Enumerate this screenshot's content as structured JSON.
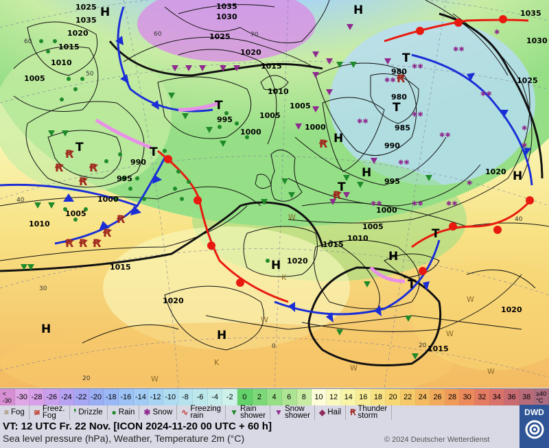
{
  "map": {
    "pressure_labels": [
      "1035",
      "1025",
      "1020",
      "1015",
      "1010",
      "1005",
      "995",
      "990",
      "985",
      "980",
      "1000",
      "1030",
      "1020"
    ],
    "highs": [
      "H",
      "H",
      "H",
      "H",
      "H",
      "H",
      "H",
      "H",
      "H"
    ],
    "lows": [
      "T",
      "T",
      "T",
      "T",
      "T",
      "T",
      "T",
      "T"
    ],
    "contours": [
      {
        "value": "1035",
        "label_at": "nw-greenland"
      },
      {
        "value": "1030",
        "label_at": "greenland"
      },
      {
        "value": "1025",
        "label_at": "greenland"
      },
      {
        "value": "1020",
        "label_at": "iceland"
      },
      {
        "value": "1015",
        "label_at": "norwegian-sea"
      },
      {
        "value": "1010",
        "label_at": "north-atlantic"
      },
      {
        "value": "1005",
        "label_at": "north-atlantic"
      },
      {
        "value": "1000",
        "label_at": "atlantic"
      },
      {
        "value": "995",
        "label_at": "atlantic"
      },
      {
        "value": "990",
        "label_at": "atlantic"
      }
    ],
    "pressure_values": {
      "p1035a": "1035",
      "p1025a": "1025",
      "p1020a": "1020",
      "p1015a": "1015",
      "p1010a": "1010",
      "p1005a": "1005",
      "p1035b": "1035",
      "p1030a": "1030",
      "p1025b": "1025",
      "p1020b": "1020",
      "p1015b": "1015",
      "p1010b": "1010",
      "p1005b": "1005",
      "p995a": "995",
      "p1000a": "1000",
      "p1005c": "1005",
      "p990a": "990",
      "p995b": "995",
      "p1000b": "1000",
      "p1005d": "1005",
      "p1010c": "1010",
      "p1015c": "1015",
      "p1000c": "1000",
      "p980a": "980",
      "p980b": "980",
      "p985a": "985",
      "p990b": "990",
      "p995c": "995",
      "p1000d": "1000",
      "p1005e": "1005",
      "p1010d": "1010",
      "p1015d": "1015",
      "p1020c": "1020",
      "p1020d": "1020",
      "p1025c": "1025",
      "p1030b": "1030",
      "p1035c": "1035",
      "p1020e": "1020",
      "p1015e": "1015",
      "p1020f": "1020"
    },
    "lat_labels": {
      "l60a": "60",
      "l50": "50",
      "l40a": "40",
      "l30": "30",
      "l20a": "20",
      "l70": "70",
      "l60b": "60",
      "l40b": "40",
      "l20b": "20",
      "l0": "0"
    }
  },
  "temperature_scale": [
    {
      "label": "<\n-30",
      "color": "#d78fd4"
    },
    {
      "label": "-30",
      "color": "#e0a8e6"
    },
    {
      "label": "-28",
      "color": "#d7a0e8"
    },
    {
      "label": "-26",
      "color": "#c9a0ee"
    },
    {
      "label": "-24",
      "color": "#b8a2f2"
    },
    {
      "label": "-22",
      "color": "#a6a6f4"
    },
    {
      "label": "-20",
      "color": "#9aaef4"
    },
    {
      "label": "-18",
      "color": "#9ab8f6"
    },
    {
      "label": "-16",
      "color": "#9cc2f6"
    },
    {
      "label": "-14",
      "color": "#a2ccf6"
    },
    {
      "label": "-12",
      "color": "#a8d4f4"
    },
    {
      "label": "-10",
      "color": "#b0dcf2"
    },
    {
      "label": "-8",
      "color": "#b6e2ee"
    },
    {
      "label": "-6",
      "color": "#bce8ec"
    },
    {
      "label": "-4",
      "color": "#c4ecea"
    },
    {
      "label": "-2",
      "color": "#cef2ea"
    },
    {
      "label": "0",
      "color": "#64d26a"
    },
    {
      "label": "2",
      "color": "#7cd878"
    },
    {
      "label": "4",
      "color": "#96df86"
    },
    {
      "label": "6",
      "color": "#aee594"
    },
    {
      "label": "8",
      "color": "#c8eca4"
    },
    {
      "label": "10",
      "color": "#fcfcd8"
    },
    {
      "label": "12",
      "color": "#fafac0"
    },
    {
      "label": "14",
      "color": "#f8f4a8"
    },
    {
      "label": "16",
      "color": "#f8ec94"
    },
    {
      "label": "18",
      "color": "#f8e284"
    },
    {
      "label": "20",
      "color": "#f8d874"
    },
    {
      "label": "22",
      "color": "#f6ca6a"
    },
    {
      "label": "24",
      "color": "#f4ba62"
    },
    {
      "label": "26",
      "color": "#f2aa5c"
    },
    {
      "label": "28",
      "color": "#f09a5a"
    },
    {
      "label": "30",
      "color": "#ec8a5c"
    },
    {
      "label": "32",
      "color": "#e47c64"
    },
    {
      "label": "34",
      "color": "#d8726a"
    },
    {
      "label": "36",
      "color": "#c86c72"
    },
    {
      "label": "38",
      "color": "#b86c7a"
    },
    {
      "label": "≥40\n°C",
      "color": "#aa6c80"
    }
  ],
  "legend": [
    {
      "icon": "fog-icon",
      "symbol": "≡",
      "color": "#8a6a2a",
      "label": "Fog"
    },
    {
      "icon": "freezing-fog-icon",
      "symbol": "≆",
      "color": "#c0392b",
      "label": "Freez.\nFog"
    },
    {
      "icon": "drizzle-icon",
      "symbol": "❜",
      "color": "#1f8a2a",
      "label": "Drizzle"
    },
    {
      "icon": "rain-icon",
      "symbol": "●",
      "color": "#1f8a2a",
      "label": "Rain"
    },
    {
      "icon": "snow-icon",
      "symbol": "✱",
      "color": "#8e2a8e",
      "label": "Snow"
    },
    {
      "icon": "freezing-rain-icon",
      "symbol": "∿",
      "color": "#c0392b",
      "label": "Freezing\nrain"
    },
    {
      "icon": "rain-shower-icon",
      "symbol": "▼",
      "color": "#1f8a2a",
      "label": "Rain\nshower"
    },
    {
      "icon": "snow-shower-icon",
      "symbol": "▼",
      "color": "#8e2a8e",
      "label": "Snow\nshower"
    },
    {
      "icon": "hail-icon",
      "symbol": "◆",
      "color": "#8e2a5e",
      "label": "Hail"
    },
    {
      "icon": "thunderstorm-icon",
      "symbol": "Ꞧ",
      "color": "#a0281e",
      "label": "Thunder\nstorm"
    }
  ],
  "footer": {
    "vt": "VT: 12 UTC Fr.  22 Nov. [ICON 2024-11-20  00 UTC + 60 h]",
    "subtitle": "Sea level pressure (hPa), Weather, Temperature 2m (°C)",
    "copyright": "© 2024 Deutscher Wetterdienst"
  },
  "logo": {
    "text": "DWD"
  }
}
